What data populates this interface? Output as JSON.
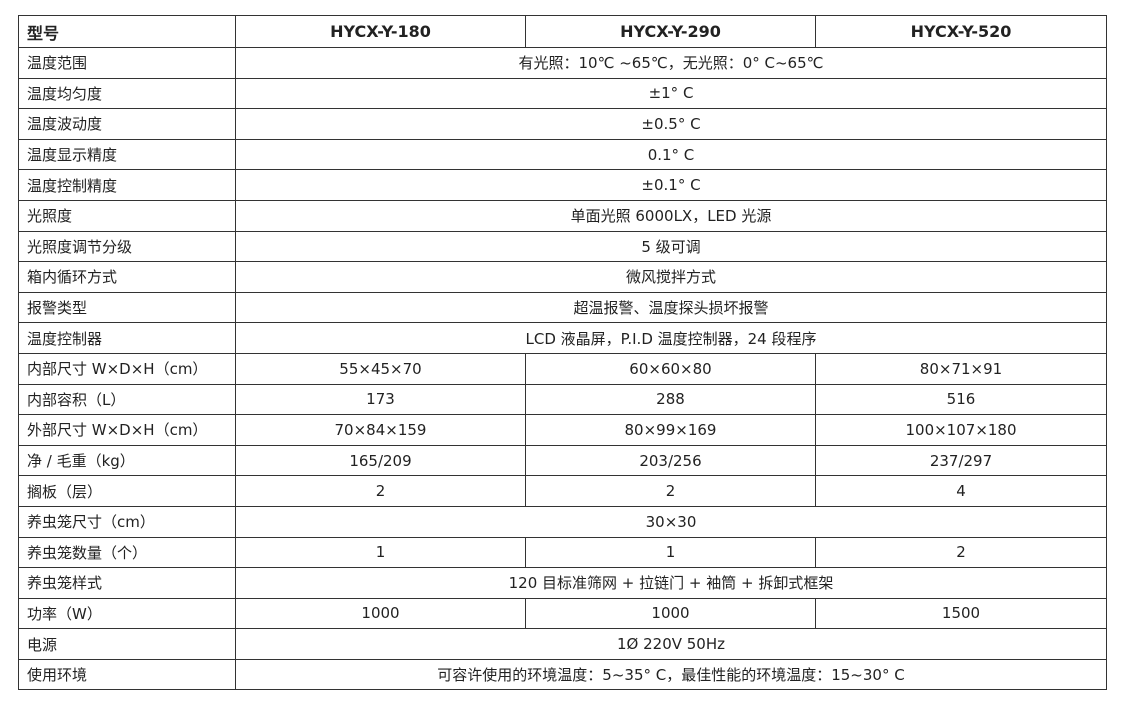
{
  "header": {
    "label": "型号",
    "models": [
      "HYCX-Y-180",
      "HYCX-Y-290",
      "HYCX-Y-520"
    ]
  },
  "rows": [
    {
      "label": "温度范围",
      "values": [
        "有光照：10℃ ~65℃，无光照：0° C~65℃"
      ]
    },
    {
      "label": "温度均匀度",
      "values": [
        "±1° C"
      ]
    },
    {
      "label": "温度波动度",
      "values": [
        "±0.5° C"
      ]
    },
    {
      "label": "温度显示精度",
      "values": [
        "0.1° C"
      ]
    },
    {
      "label": "温度控制精度",
      "values": [
        "±0.1° C"
      ]
    },
    {
      "label": "光照度",
      "values": [
        "单面光照 6000LX，LED 光源"
      ]
    },
    {
      "label": "光照度调节分级",
      "values": [
        "5 级可调"
      ]
    },
    {
      "label": "箱内循环方式",
      "values": [
        "微风搅拌方式"
      ]
    },
    {
      "label": "报警类型",
      "values": [
        "超温报警、温度探头损坏报警"
      ]
    },
    {
      "label": "温度控制器",
      "values": [
        "LCD 液晶屏，P.I.D 温度控制器，24 段程序"
      ]
    },
    {
      "label": "内部尺寸 W×D×H（cm）",
      "values": [
        "55×45×70",
        "60×60×80",
        "80×71×91"
      ]
    },
    {
      "label": "内部容积（L）",
      "values": [
        "173",
        "288",
        "516"
      ]
    },
    {
      "label": "外部尺寸 W×D×H（cm）",
      "values": [
        "70×84×159",
        "80×99×169",
        "100×107×180"
      ]
    },
    {
      "label": "净 / 毛重（kg）",
      "values": [
        "165/209",
        "203/256",
        "237/297"
      ]
    },
    {
      "label": "搁板（层）",
      "values": [
        "2",
        "2",
        "4"
      ]
    },
    {
      "label": "养虫笼尺寸（cm）",
      "values": [
        "30×30"
      ]
    },
    {
      "label": "养虫笼数量（个）",
      "values": [
        "1",
        "1",
        "2"
      ]
    },
    {
      "label": "养虫笼样式",
      "values": [
        "120 目标准筛网 + 拉链门 + 袖筒 + 拆卸式框架"
      ]
    },
    {
      "label": "功率（W）",
      "values": [
        "1000",
        "1000",
        "1500"
      ]
    },
    {
      "label": "电源",
      "values": [
        "1Ø 220V 50Hz"
      ]
    },
    {
      "label": "使用环境",
      "values": [
        "可容许使用的环境温度：5~35° C，最佳性能的环境温度：15~30° C"
      ]
    }
  ]
}
